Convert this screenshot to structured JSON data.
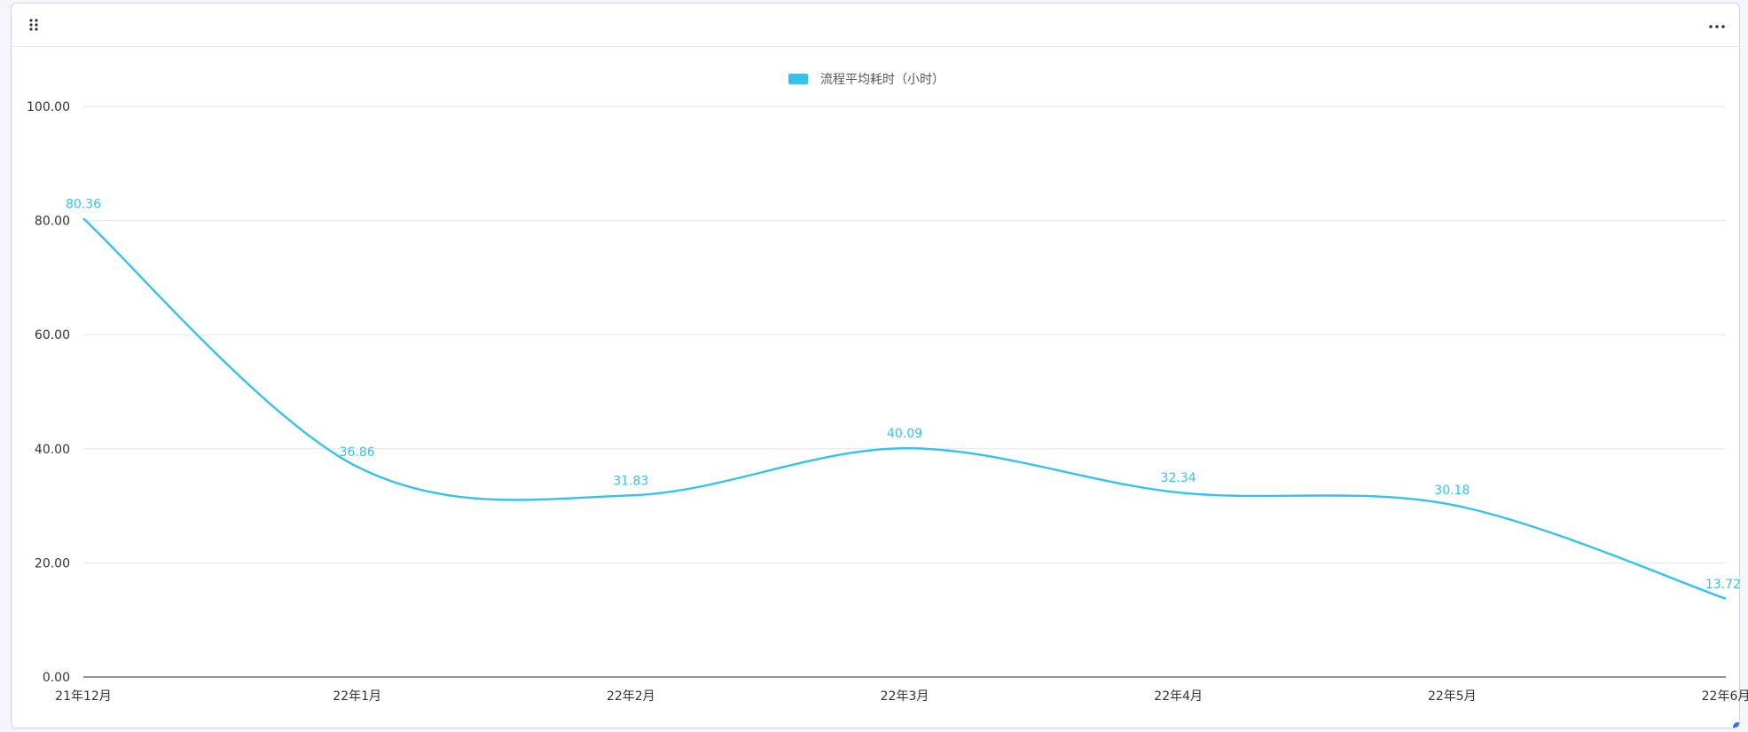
{
  "colors": {
    "series": "#33c2f0",
    "grid": "#e2e5ea",
    "axis": "#555555",
    "card_border": "#c8d4f2"
  },
  "header": {
    "drag_icon": "drag-handle-icon",
    "more_icon": "more-horizontal-icon"
  },
  "chart_data": {
    "type": "line",
    "smooth": true,
    "categories": [
      "21年12月",
      "22年1月",
      "22年2月",
      "22年3月",
      "22年4月",
      "22年5月",
      "22年6月"
    ],
    "series": [
      {
        "name": "流程平均耗时（小时）",
        "values": [
          80.36,
          36.86,
          31.83,
          40.09,
          32.34,
          30.18,
          13.72
        ]
      }
    ],
    "data_labels": [
      "80.36",
      "36.86",
      "31.83",
      "40.09",
      "32.34",
      "30.18",
      "13.72"
    ],
    "y_ticks": [
      "0.00",
      "20.00",
      "40.00",
      "60.00",
      "80.00",
      "100.00"
    ],
    "ylim": [
      0,
      100
    ],
    "grid": true,
    "legend_position": "top-center"
  }
}
